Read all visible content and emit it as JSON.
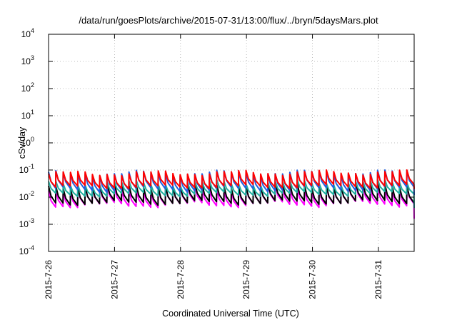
{
  "chart_data": {
    "type": "line",
    "title": "/data/run/goesPlots/archive/2015-07-31/13:00/flux/../bryn/5daysMars.plot",
    "xlabel": "Coordinated Universal Time (UTC)",
    "ylabel": "cSv/day",
    "yscale": "log",
    "ylim": [
      0.0001,
      10000
    ],
    "xlim": [
      "2015-07-26 00:00",
      "2015-07-31 13:00"
    ],
    "x_ticks": [
      "2015-7-26",
      "2015-7-27",
      "2015-7-28",
      "2015-7-29",
      "2015-7-30",
      "2015-7-31"
    ],
    "y_ticks": [
      {
        "base": "10",
        "exp": "-4",
        "value": 0.0001
      },
      {
        "base": "10",
        "exp": "-3",
        "value": 0.001
      },
      {
        "base": "10",
        "exp": "-2",
        "value": 0.01
      },
      {
        "base": "10",
        "exp": "-1",
        "value": 0.1
      },
      {
        "base": "10",
        "exp": "0",
        "value": 1
      },
      {
        "base": "10",
        "exp": "1",
        "value": 10
      },
      {
        "base": "10",
        "exp": "2",
        "value": 100
      },
      {
        "base": "10",
        "exp": "3",
        "value": 1000
      },
      {
        "base": "10",
        "exp": "4",
        "value": 10000
      }
    ],
    "grid": true,
    "pattern": "sawtooth, about 9 cycles per day",
    "series": [
      {
        "color": "#ff0000",
        "peak_range": [
          0.06,
          0.1
        ],
        "trough_range": [
          0.02,
          0.03
        ]
      },
      {
        "color": "#2060e0",
        "peak_range": [
          0.06,
          0.1
        ],
        "trough_range": [
          0.015,
          0.025
        ]
      },
      {
        "color": "#20b0a0",
        "peak_range": [
          0.025,
          0.045
        ],
        "trough_range": [
          0.01,
          0.016
        ]
      },
      {
        "color": "#000000",
        "peak_range": [
          0.02,
          0.035
        ],
        "trough_range": [
          0.005,
          0.008
        ]
      },
      {
        "color": "#ff00ff",
        "peak_range": [
          0.015,
          0.03
        ],
        "trough_range": [
          0.004,
          0.007
        ]
      }
    ],
    "end_values": {
      "red": 0.02,
      "blue": 0.012,
      "teal": 0.004,
      "magenta": 0.0016
    }
  }
}
